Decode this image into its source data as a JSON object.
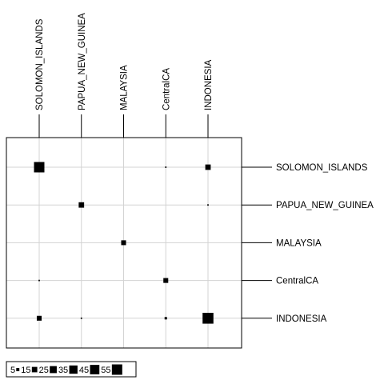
{
  "chart_data": {
    "type": "bubble_matrix",
    "title": "",
    "columns": [
      "SOLOMON_ISLANDS",
      "PAPUA_NEW_GUINEA",
      "MALAYSIA",
      "CentralCA",
      "INDONESIA"
    ],
    "rows": [
      "SOLOMON_ISLANDS",
      "PAPUA_NEW_GUINEA",
      "MALAYSIA",
      "CentralCA",
      "INDONESIA"
    ],
    "values": [
      [
        55,
        0,
        0,
        1,
        15
      ],
      [
        0,
        15,
        0,
        0,
        1
      ],
      [
        0,
        0,
        12,
        0,
        0
      ],
      [
        1,
        0,
        0,
        12,
        0
      ],
      [
        12,
        1,
        0,
        3,
        60
      ]
    ],
    "legend": {
      "placement": "bottom-left",
      "sizes": [
        5,
        15,
        25,
        35,
        45,
        55
      ],
      "labels": [
        "5",
        "15",
        "25",
        "35",
        "45",
        "55"
      ]
    },
    "grid": true
  },
  "colors": {
    "marker": "#000000",
    "grid": "#d3d3d3",
    "frame": "#000000"
  }
}
